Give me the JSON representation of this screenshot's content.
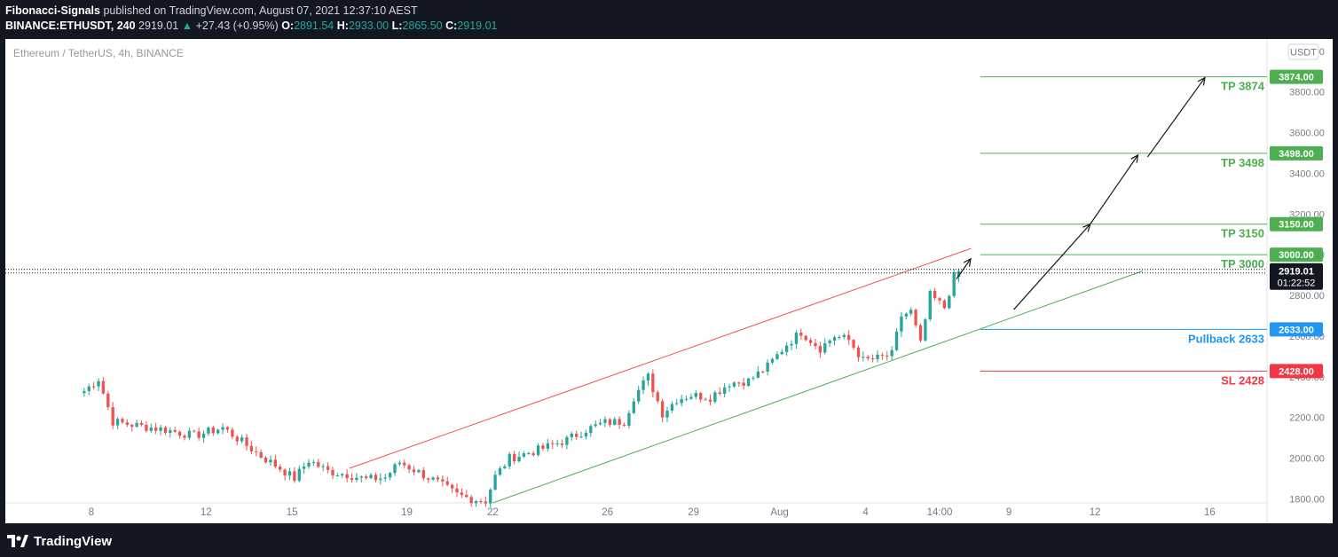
{
  "header": {
    "author": "Fibonacci-Signals",
    "published": "published on TradingView.com, August 07, 2021 12:37:10 AEST",
    "symbol": "BINANCE:ETHUSDT, 240",
    "last": "2919.01",
    "change": "+27.43 (+0.95%)",
    "open_label": "O:",
    "open": "2891.54",
    "high_label": "H:",
    "high": "2933.00",
    "low_label": "L:",
    "low": "2865.50",
    "close_label": "C:",
    "close": "2919.01"
  },
  "footer": {
    "brand": "TradingView"
  },
  "colors": {
    "background": "#131722",
    "up": "#26a69a",
    "down": "#ef5350",
    "take_profit": "#4caf50",
    "pullback": "#2196f3",
    "stop_loss": "#f23645",
    "price_tag": "#131722",
    "axis_text": "#787b86"
  },
  "chart_data": {
    "type": "candlestick",
    "title": "Ethereum / TetherUS, 4h, BINANCE",
    "currency_label": "USDT",
    "xlabel": "",
    "ylabel": "",
    "ylim": [
      1780,
      4060
    ],
    "y_ticks": [
      1800,
      2000,
      2200,
      2400,
      2600,
      2800,
      3000,
      3200,
      3400,
      3600,
      3800,
      4000
    ],
    "y_tick_labels": [
      "1800.00",
      "2000.00",
      "2200.00",
      "2400.00",
      "2600.00",
      "2800.00",
      "3000.00",
      "3200.00",
      "3400.00",
      "3600.00",
      "3800.00",
      "4000.00"
    ],
    "x_axis": {
      "start": "2021-07-05T00:00",
      "end": "2021-08-18T00:00",
      "ticks": [
        {
          "date": "2021-07-08T00:00",
          "label": "8"
        },
        {
          "date": "2021-07-12T00:00",
          "label": "12"
        },
        {
          "date": "2021-07-15T00:00",
          "label": "15"
        },
        {
          "date": "2021-07-19T00:00",
          "label": "19"
        },
        {
          "date": "2021-07-22T00:00",
          "label": "22"
        },
        {
          "date": "2021-07-26T00:00",
          "label": "26"
        },
        {
          "date": "2021-07-29T00:00",
          "label": "29"
        },
        {
          "date": "2021-08-01T00:00",
          "label": "Aug"
        },
        {
          "date": "2021-08-04T00:00",
          "label": "4"
        },
        {
          "date": "2021-08-06T14:00",
          "label": "14:00"
        },
        {
          "date": "2021-08-09T00:00",
          "label": "9"
        },
        {
          "date": "2021-08-12T00:00",
          "label": "12"
        },
        {
          "date": "2021-08-16T00:00",
          "label": "16"
        }
      ]
    },
    "close_path": [
      [
        "2021-07-07T16:00",
        2330
      ],
      [
        "2021-07-08T04:00",
        2390
      ],
      [
        "2021-07-08T16:00",
        2180
      ],
      [
        "2021-07-09T12:00",
        2160
      ],
      [
        "2021-07-10T12:00",
        2140
      ],
      [
        "2021-07-11T12:00",
        2110
      ],
      [
        "2021-07-12T12:00",
        2150
      ],
      [
        "2021-07-13T04:00",
        2080
      ],
      [
        "2021-07-13T20:00",
        2010
      ],
      [
        "2021-07-14T12:00",
        1950
      ],
      [
        "2021-07-15T00:00",
        1900
      ],
      [
        "2021-07-15T12:00",
        1990
      ],
      [
        "2021-07-16T04:00",
        1935
      ],
      [
        "2021-07-16T20:00",
        1920
      ],
      [
        "2021-07-17T12:00",
        1895
      ],
      [
        "2021-07-18T04:00",
        1905
      ],
      [
        "2021-07-18T16:00",
        1980
      ],
      [
        "2021-07-19T08:00",
        1930
      ],
      [
        "2021-07-20T00:00",
        1880
      ],
      [
        "2021-07-20T16:00",
        1820
      ],
      [
        "2021-07-21T04:00",
        1800
      ],
      [
        "2021-07-21T16:00",
        1790
      ],
      [
        "2021-07-22T00:00",
        1910
      ],
      [
        "2021-07-22T12:00",
        2000
      ],
      [
        "2021-07-23T12:00",
        2040
      ],
      [
        "2021-07-24T12:00",
        2090
      ],
      [
        "2021-07-25T04:00",
        2140
      ],
      [
        "2021-07-25T20:00",
        2175
      ],
      [
        "2021-07-26T12:00",
        2180
      ],
      [
        "2021-07-26T20:00",
        2300
      ],
      [
        "2021-07-27T08:00",
        2400
      ],
      [
        "2021-07-27T20:00",
        2220
      ],
      [
        "2021-07-28T08:00",
        2290
      ],
      [
        "2021-07-28T20:00",
        2310
      ],
      [
        "2021-07-29T12:00",
        2300
      ],
      [
        "2021-07-30T04:00",
        2370
      ],
      [
        "2021-07-30T20:00",
        2380
      ],
      [
        "2021-07-31T12:00",
        2450
      ],
      [
        "2021-08-01T04:00",
        2560
      ],
      [
        "2021-08-01T16:00",
        2620
      ],
      [
        "2021-08-02T08:00",
        2540
      ],
      [
        "2021-08-02T20:00",
        2600
      ],
      [
        "2021-08-03T08:00",
        2580
      ],
      [
        "2021-08-03T20:00",
        2480
      ],
      [
        "2021-08-04T08:00",
        2490
      ],
      [
        "2021-08-04T20:00",
        2510
      ],
      [
        "2021-08-05T04:00",
        2700
      ],
      [
        "2021-08-05T12:00",
        2720
      ],
      [
        "2021-08-05T20:00",
        2560
      ],
      [
        "2021-08-06T04:00",
        2800
      ],
      [
        "2021-08-06T16:00",
        2740
      ],
      [
        "2021-08-07T00:00",
        2892
      ],
      [
        "2021-08-07T04:00",
        2919
      ]
    ],
    "last_candle": {
      "open": 2891.54,
      "high": 2933.0,
      "low": 2865.5,
      "close": 2919.01
    },
    "last_price_label": "2919.01",
    "countdown_label": "01:22:52",
    "channel": {
      "resistance": {
        "from": [
          "2021-07-17T00:00",
          1950
        ],
        "to": [
          "2021-08-07T16:00",
          3030
        ]
      },
      "support": {
        "from": [
          "2021-07-22T00:00",
          1780
        ],
        "to": [
          "2021-08-13T16:00",
          2920
        ]
      }
    },
    "levels": [
      {
        "name": "TP 3874",
        "value": 3874,
        "tag": "3874.00",
        "kind": "take_profit"
      },
      {
        "name": "TP 3498",
        "value": 3498,
        "tag": "3498.00",
        "kind": "take_profit"
      },
      {
        "name": "TP 3150",
        "value": 3150,
        "tag": "3150.00",
        "kind": "take_profit"
      },
      {
        "name": "TP 3000",
        "value": 3000,
        "tag": "3000.00",
        "kind": "take_profit"
      },
      {
        "name": "Pullback 2633",
        "value": 2633,
        "tag": "2633.00",
        "kind": "pullback"
      },
      {
        "name": "SL 2428",
        "value": 2428,
        "tag": "2428.00",
        "kind": "stop_loss"
      }
    ],
    "levels_start": "2021-08-08T00:00",
    "projection_arrows": [
      {
        "from": [
          "2021-08-07T04:00",
          2880
        ],
        "to": [
          "2021-08-07T16:00",
          2980
        ]
      },
      {
        "from": [
          "2021-08-09T04:00",
          2730
        ],
        "to": [
          "2021-08-11T20:00",
          3150
        ]
      },
      {
        "from": [
          "2021-08-11T20:00",
          3150
        ],
        "to": [
          "2021-08-13T12:00",
          3490
        ]
      },
      {
        "from": [
          "2021-08-13T20:00",
          3480
        ],
        "to": [
          "2021-08-15T20:00",
          3870
        ]
      }
    ]
  }
}
